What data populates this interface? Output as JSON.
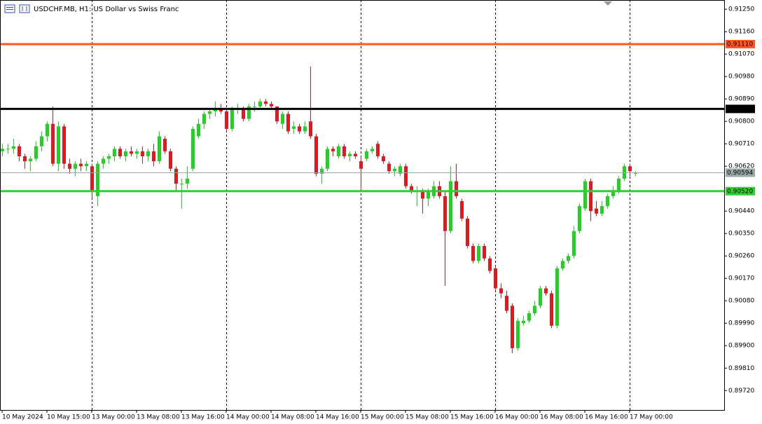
{
  "chart_data": {
    "type": "candlestick",
    "title": "USDCHF.MB, H1: US Dollar vs Swiss Franc",
    "up_color": "#1fd41f",
    "down_color": "#e8141e",
    "ylim": [
      0.89642,
      0.91287
    ],
    "yticks": [
      {
        "value": 0.9125,
        "label": "0.91250"
      },
      {
        "value": 0.9116,
        "label": "0.91160"
      },
      {
        "value": 0.9107,
        "label": "0.91070"
      },
      {
        "value": 0.9098,
        "label": "0.90980"
      },
      {
        "value": 0.9089,
        "label": "0.90890"
      },
      {
        "value": 0.908,
        "label": "0.90800"
      },
      {
        "value": 0.9071,
        "label": "0.90710"
      },
      {
        "value": 0.9062,
        "label": "0.90620"
      },
      {
        "value": 0.9044,
        "label": "0.90440"
      },
      {
        "value": 0.9035,
        "label": "0.90350"
      },
      {
        "value": 0.9026,
        "label": "0.90260"
      },
      {
        "value": 0.9017,
        "label": "0.90170"
      },
      {
        "value": 0.9008,
        "label": "0.90080"
      },
      {
        "value": 0.8999,
        "label": "0.89990"
      },
      {
        "value": 0.899,
        "label": "0.89900"
      },
      {
        "value": 0.8981,
        "label": "0.89810"
      },
      {
        "value": 0.8972,
        "label": "0.89720"
      }
    ],
    "levels": [
      {
        "value": 0.9111,
        "label": "0.91110",
        "color": "#ff5722"
      },
      {
        "value": 0.9085,
        "label": "0.90850",
        "color": "#000000"
      },
      {
        "value": 0.90594,
        "label": "0.90594",
        "color": "#9aa8a8"
      },
      {
        "value": 0.9052,
        "label": "0.90520",
        "color": "#32cd32"
      }
    ],
    "categories": [
      "10 May 2024",
      null,
      null,
      null,
      null,
      null,
      null,
      null,
      "10 May 15:00",
      null,
      null,
      null,
      null,
      null,
      null,
      null,
      "13 May 00:00",
      null,
      null,
      null,
      null,
      null,
      null,
      null,
      "13 May 08:00",
      null,
      null,
      null,
      null,
      null,
      null,
      null,
      "13 May 16:00",
      null,
      null,
      null,
      null,
      null,
      null,
      null,
      "14 May 00:00",
      null,
      null,
      null,
      null,
      null,
      null,
      null,
      "14 May 08:00",
      null,
      null,
      null,
      null,
      null,
      null,
      null,
      "14 May 16:00",
      null,
      null,
      null,
      null,
      null,
      null,
      null,
      "15 May 00:00",
      null,
      null,
      null,
      null,
      null,
      null,
      null,
      "15 May 08:00",
      null,
      null,
      null,
      null,
      null,
      null,
      null,
      "15 May 16:00",
      null,
      null,
      null,
      null,
      null,
      null,
      null,
      "16 May 00:00",
      null,
      null,
      null,
      null,
      null,
      null,
      null,
      "16 May 08:00",
      null,
      null,
      null,
      null,
      null,
      null,
      null,
      "16 May 16:00",
      null,
      null,
      null,
      null,
      null,
      null,
      null,
      "17 May 00:00",
      null
    ],
    "day_separators": [
      16,
      40,
      64,
      88,
      112
    ],
    "ohlc": [
      [
        0.9068,
        0.9071,
        0.9066,
        0.9069
      ],
      [
        0.9069,
        0.9071,
        0.9067,
        0.9069
      ],
      [
        0.9069,
        0.9073,
        0.9067,
        0.907
      ],
      [
        0.907,
        0.9071,
        0.9064,
        0.9066
      ],
      [
        0.9066,
        0.9067,
        0.9061,
        0.9064
      ],
      [
        0.9064,
        0.9066,
        0.906,
        0.9065
      ],
      [
        0.9065,
        0.9072,
        0.9064,
        0.907
      ],
      [
        0.907,
        0.9076,
        0.9068,
        0.9074
      ],
      [
        0.9074,
        0.908,
        0.9072,
        0.9079
      ],
      [
        0.9079,
        0.9086,
        0.9062,
        0.9063
      ],
      [
        0.9063,
        0.908,
        0.906,
        0.9078
      ],
      [
        0.9078,
        0.9079,
        0.9061,
        0.9063
      ],
      [
        0.9063,
        0.9065,
        0.9059,
        0.9061
      ],
      [
        0.9061,
        0.9064,
        0.9058,
        0.9063
      ],
      [
        0.9063,
        0.9065,
        0.906,
        0.9062
      ],
      [
        0.9062,
        0.9064,
        0.906,
        0.9063
      ],
      [
        0.9062,
        0.9063,
        0.9049,
        0.9052
      ],
      [
        0.905,
        0.9064,
        0.9046,
        0.9063
      ],
      [
        0.9063,
        0.9066,
        0.9061,
        0.9065
      ],
      [
        0.9065,
        0.9067,
        0.9063,
        0.9066
      ],
      [
        0.9066,
        0.907,
        0.9064,
        0.9069
      ],
      [
        0.9069,
        0.907,
        0.9065,
        0.9066
      ],
      [
        0.9066,
        0.9069,
        0.9064,
        0.9068
      ],
      [
        0.9068,
        0.907,
        0.9066,
        0.9067
      ],
      [
        0.9067,
        0.9069,
        0.9065,
        0.9068
      ],
      [
        0.9068,
        0.907,
        0.9063,
        0.9066
      ],
      [
        0.9066,
        0.9069,
        0.9064,
        0.9068
      ],
      [
        0.9068,
        0.9071,
        0.9062,
        0.9064
      ],
      [
        0.9064,
        0.9076,
        0.9063,
        0.9074
      ],
      [
        0.9073,
        0.9074,
        0.9067,
        0.9068
      ],
      [
        0.9068,
        0.9069,
        0.906,
        0.9061
      ],
      [
        0.9061,
        0.9062,
        0.9052,
        0.9055
      ],
      [
        0.9055,
        0.9057,
        0.9045,
        0.9055
      ],
      [
        0.9055,
        0.9062,
        0.9053,
        0.9057
      ],
      [
        0.9061,
        0.9078,
        0.906,
        0.9077
      ],
      [
        0.9074,
        0.9081,
        0.9073,
        0.9079
      ],
      [
        0.9079,
        0.9084,
        0.9077,
        0.9083
      ],
      [
        0.9083,
        0.9085,
        0.9081,
        0.9084
      ],
      [
        0.9084,
        0.9088,
        0.9082,
        0.9085
      ],
      [
        0.9085,
        0.9087,
        0.9083,
        0.9084
      ],
      [
        0.9084,
        0.9085,
        0.9076,
        0.9077
      ],
      [
        0.9077,
        0.9086,
        0.9076,
        0.9085
      ],
      [
        0.9085,
        0.9087,
        0.9083,
        0.9085
      ],
      [
        0.9085,
        0.9086,
        0.908,
        0.9081
      ],
      [
        0.9081,
        0.9087,
        0.908,
        0.9086
      ],
      [
        0.9086,
        0.9088,
        0.9084,
        0.9086
      ],
      [
        0.9086,
        0.9089,
        0.9085,
        0.9088
      ],
      [
        0.9088,
        0.9089,
        0.9086,
        0.9087
      ],
      [
        0.9087,
        0.9088,
        0.9085,
        0.9086
      ],
      [
        0.9086,
        0.9086,
        0.9079,
        0.908
      ],
      [
        0.9079,
        0.9084,
        0.9077,
        0.9083
      ],
      [
        0.9083,
        0.9084,
        0.9075,
        0.9076
      ],
      [
        0.9077,
        0.908,
        0.9075,
        0.9078
      ],
      [
        0.9078,
        0.9079,
        0.9075,
        0.9076
      ],
      [
        0.9076,
        0.908,
        0.9075,
        0.9078
      ],
      [
        0.908,
        0.9102,
        0.9073,
        0.9074
      ],
      [
        0.9074,
        0.9075,
        0.9058,
        0.9059
      ],
      [
        0.9059,
        0.9062,
        0.9055,
        0.9061
      ],
      [
        0.9061,
        0.907,
        0.906,
        0.9069
      ],
      [
        0.9069,
        0.907,
        0.9066,
        0.9068
      ],
      [
        0.9066,
        0.9071,
        0.9065,
        0.907
      ],
      [
        0.907,
        0.9071,
        0.9065,
        0.9066
      ],
      [
        0.9066,
        0.9068,
        0.9064,
        0.9067
      ],
      [
        0.9067,
        0.9068,
        0.9065,
        0.9066
      ],
      [
        0.9064,
        0.9066,
        0.9053,
        0.9061
      ],
      [
        0.9065,
        0.9069,
        0.9064,
        0.9068
      ],
      [
        0.9068,
        0.907,
        0.9067,
        0.9069
      ],
      [
        0.9071,
        0.9072,
        0.9065,
        0.9066
      ],
      [
        0.9066,
        0.9067,
        0.9063,
        0.9064
      ],
      [
        0.9063,
        0.9064,
        0.9059,
        0.906
      ],
      [
        0.906,
        0.9062,
        0.9058,
        0.9061
      ],
      [
        0.9059,
        0.9063,
        0.9058,
        0.9062
      ],
      [
        0.9062,
        0.9063,
        0.9053,
        0.9054
      ],
      [
        0.9054,
        0.9055,
        0.9051,
        0.9052
      ],
      [
        0.9052,
        0.9054,
        0.9046,
        0.9052
      ],
      [
        0.9052,
        0.9053,
        0.9043,
        0.9049
      ],
      [
        0.9049,
        0.9053,
        0.9046,
        0.9052
      ],
      [
        0.905,
        0.9056,
        0.9049,
        0.9054
      ],
      [
        0.9054,
        0.9056,
        0.9049,
        0.905
      ],
      [
        0.905,
        0.9052,
        0.9014,
        0.9036
      ],
      [
        0.9036,
        0.9062,
        0.9035,
        0.9056
      ],
      [
        0.9056,
        0.9063,
        0.9049,
        0.905
      ],
      [
        0.9048,
        0.9049,
        0.904,
        0.9041
      ],
      [
        0.9041,
        0.9042,
        0.9029,
        0.903
      ],
      [
        0.903,
        0.9031,
        0.9023,
        0.9024
      ],
      [
        0.9024,
        0.9031,
        0.9023,
        0.903
      ],
      [
        0.903,
        0.9031,
        0.9024,
        0.9025
      ],
      [
        0.9025,
        0.9026,
        0.9019,
        0.902
      ],
      [
        0.9021,
        0.9022,
        0.9012,
        0.9013
      ],
      [
        0.9013,
        0.9015,
        0.9009,
        0.9011
      ],
      [
        0.901,
        0.9012,
        0.9003,
        0.9004
      ],
      [
        0.9006,
        0.9007,
        0.8987,
        0.8989
      ],
      [
        0.8989,
        0.9001,
        0.8988,
        0.9
      ],
      [
        0.8999,
        0.9002,
        0.8998,
        0.9
      ],
      [
        0.9,
        0.9004,
        0.8999,
        0.9003
      ],
      [
        0.9003,
        0.9008,
        0.9002,
        0.9006
      ],
      [
        0.9006,
        0.9014,
        0.9005,
        0.9013
      ],
      [
        0.9013,
        0.9014,
        0.901,
        0.9011
      ],
      [
        0.9011,
        0.9012,
        0.8997,
        0.8998
      ],
      [
        0.8998,
        0.9022,
        0.8997,
        0.9021
      ],
      [
        0.9021,
        0.9025,
        0.902,
        0.9024
      ],
      [
        0.9024,
        0.9027,
        0.9023,
        0.9026
      ],
      [
        0.9026,
        0.9038,
        0.9025,
        0.9036
      ],
      [
        0.9036,
        0.9047,
        0.9035,
        0.9046
      ],
      [
        0.9045,
        0.9057,
        0.9044,
        0.9056
      ],
      [
        0.9056,
        0.9057,
        0.904,
        0.9044
      ],
      [
        0.9045,
        0.9048,
        0.9042,
        0.9043
      ],
      [
        0.9043,
        0.9048,
        0.9042,
        0.9046
      ],
      [
        0.9046,
        0.9051,
        0.9045,
        0.905
      ],
      [
        0.905,
        0.9054,
        0.9049,
        0.9052
      ],
      [
        0.9052,
        0.9058,
        0.9051,
        0.9057
      ],
      [
        0.9057,
        0.9063,
        0.9056,
        0.9062
      ],
      [
        0.9062,
        0.9063,
        0.9058,
        0.906
      ],
      [
        0.9059,
        0.906,
        0.9058,
        0.90594
      ]
    ]
  }
}
